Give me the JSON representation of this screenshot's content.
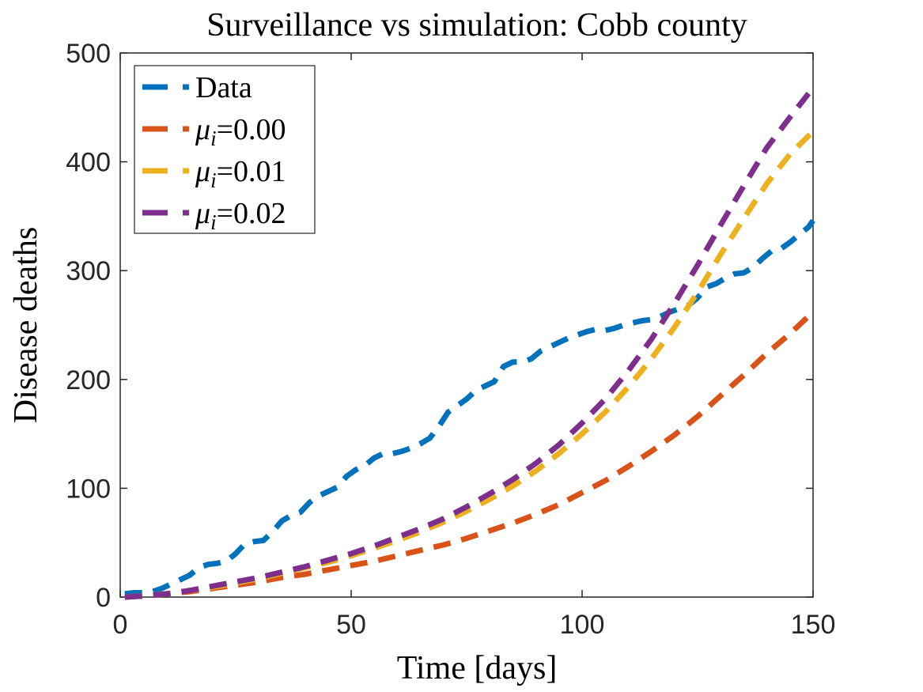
{
  "chart_data": {
    "type": "line",
    "title": "Surveillance vs simulation: Cobb county",
    "xlabel": "Time [days]",
    "ylabel": "Disease deaths",
    "xlim": [
      0,
      150
    ],
    "ylim": [
      0,
      500
    ],
    "xticks": [
      "0",
      "50",
      "100",
      "150"
    ],
    "yticks": [
      "0",
      "100",
      "200",
      "300",
      "400",
      "500"
    ],
    "grid": false,
    "legend_position": "top-left",
    "series": [
      {
        "name": "Data",
        "label_symbol": "",
        "label_value": "Data",
        "color": "#0072BD",
        "x": [
          1,
          3,
          5,
          7,
          9,
          11,
          13,
          15,
          17,
          19,
          21,
          23,
          25,
          27,
          29,
          31,
          33,
          35,
          37,
          39,
          41,
          43,
          45,
          47,
          49,
          51,
          53,
          55,
          57,
          59,
          61,
          63,
          65,
          67,
          69,
          71,
          73,
          75,
          77,
          79,
          81,
          83,
          85,
          87,
          89,
          91,
          93,
          95,
          97,
          99,
          101,
          103,
          105,
          107,
          109,
          111,
          113,
          115,
          117,
          119,
          121,
          123,
          125,
          127,
          129,
          131,
          133,
          135,
          137,
          139,
          141,
          143,
          145,
          147,
          149,
          150
        ],
        "values": [
          3,
          4,
          4,
          5,
          8,
          12,
          16,
          20,
          27,
          30,
          31,
          33,
          40,
          49,
          51,
          52,
          60,
          70,
          75,
          78,
          87,
          93,
          97,
          101,
          111,
          117,
          121,
          128,
          132,
          132,
          134,
          137,
          141,
          146,
          157,
          170,
          176,
          182,
          190,
          194,
          198,
          212,
          216,
          216,
          219,
          226,
          230,
          234,
          238,
          241,
          244,
          246,
          245,
          247,
          250,
          252,
          254,
          255,
          258,
          262,
          265,
          268,
          275,
          285,
          288,
          293,
          297,
          298,
          303,
          311,
          318,
          320,
          326,
          333,
          340,
          346
        ]
      },
      {
        "name": "mu_i=0.00",
        "label_symbol": "μ",
        "label_sub": "i",
        "label_value": "=0.00",
        "color": "#D95319",
        "x": [
          1,
          5,
          10,
          15,
          20,
          25,
          30,
          35,
          40,
          45,
          50,
          55,
          60,
          65,
          70,
          75,
          80,
          85,
          90,
          95,
          100,
          105,
          110,
          115,
          120,
          125,
          130,
          135,
          140,
          145,
          150
        ],
        "values": [
          0,
          1,
          3,
          5,
          8,
          11,
          14,
          18,
          21,
          25,
          29,
          33,
          38,
          43,
          48,
          54,
          61,
          68,
          76,
          85,
          96,
          107,
          120,
          134,
          149,
          166,
          185,
          204,
          224,
          242,
          262
        ]
      },
      {
        "name": "mu_i=0.01",
        "label_symbol": "μ",
        "label_sub": "i",
        "label_value": "=0.01",
        "color": "#EDB120",
        "x": [
          1,
          5,
          10,
          15,
          20,
          25,
          30,
          35,
          40,
          45,
          50,
          55,
          60,
          65,
          70,
          75,
          80,
          85,
          90,
          95,
          100,
          105,
          110,
          115,
          120,
          125,
          130,
          135,
          140,
          145,
          150
        ],
        "values": [
          0,
          1,
          3,
          6,
          9,
          13,
          17,
          22,
          27,
          32,
          38,
          45,
          52,
          60,
          69,
          79,
          90,
          102,
          116,
          132,
          150,
          170,
          193,
          219,
          248,
          280,
          315,
          348,
          380,
          407,
          428
        ]
      },
      {
        "name": "mu_i=0.02",
        "label_symbol": "μ",
        "label_sub": "i",
        "label_value": "=0.02",
        "color": "#7E2F8E",
        "x": [
          1,
          5,
          10,
          15,
          20,
          25,
          30,
          35,
          40,
          45,
          50,
          55,
          60,
          65,
          70,
          75,
          80,
          85,
          90,
          95,
          100,
          105,
          110,
          115,
          120,
          125,
          130,
          135,
          140,
          145,
          150
        ],
        "values": [
          0,
          1,
          3,
          6,
          10,
          14,
          18,
          23,
          28,
          34,
          40,
          47,
          55,
          63,
          72,
          83,
          95,
          108,
          123,
          140,
          160,
          182,
          208,
          237,
          270,
          305,
          342,
          378,
          413,
          441,
          468
        ]
      }
    ]
  }
}
